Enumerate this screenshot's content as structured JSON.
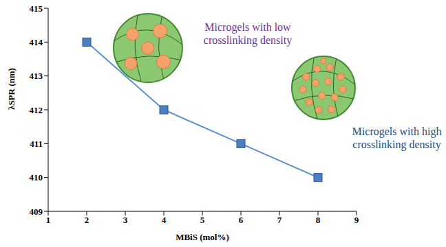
{
  "chart_data": {
    "type": "line",
    "x_label": "MBiS (mol%)",
    "y_label": "λSPR (nm)",
    "x": [
      2,
      4,
      6,
      8
    ],
    "series": [
      {
        "name": "λSPR",
        "color": "#5b8fd0",
        "marker": "square",
        "line_style": "solid",
        "values": [
          414,
          412,
          411,
          410
        ]
      }
    ],
    "xlim": [
      1,
      9
    ],
    "xticks": [
      1,
      2,
      3,
      4,
      5,
      6,
      7,
      8,
      9
    ],
    "ylim": [
      409,
      415
    ],
    "yticks": [
      409,
      410,
      411,
      412,
      413,
      414,
      415
    ],
    "grid": false,
    "annotations": [
      "Microgels with low crosslinking density",
      "Microgels with high crosslinking density"
    ]
  }
}
